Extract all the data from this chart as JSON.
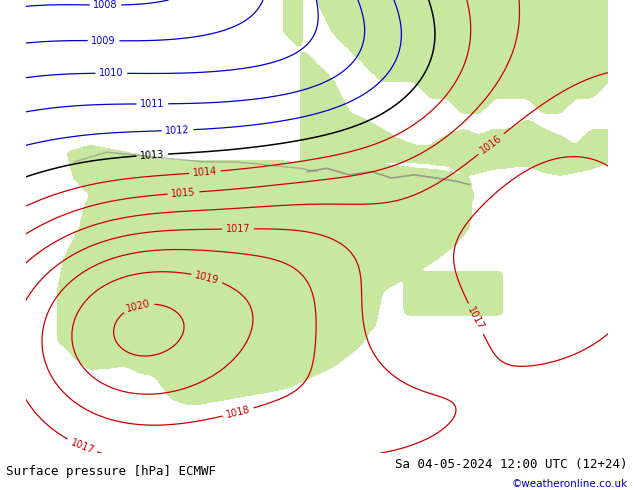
{
  "title_left": "Surface pressure [hPa] ECMWF",
  "title_right": "Sa 04-05-2024 12:00 UTC (12+24)",
  "watermark": "©weatheronline.co.uk",
  "bg_color": "#d0d0d0",
  "land_color": "#c8e8a0",
  "sea_color": "#d0d0d0",
  "blue_contour_color": "#0000cc",
  "red_contour_color": "#cc0000",
  "black_contour_color": "#000000",
  "gray_contour_color": "#808080",
  "font_size_labels": 7,
  "font_size_title": 9,
  "figsize": [
    6.34,
    4.9
  ],
  "dpi": 100,
  "xlim": [
    -10.5,
    7.5
  ],
  "ylim": [
    34.5,
    48.5
  ]
}
